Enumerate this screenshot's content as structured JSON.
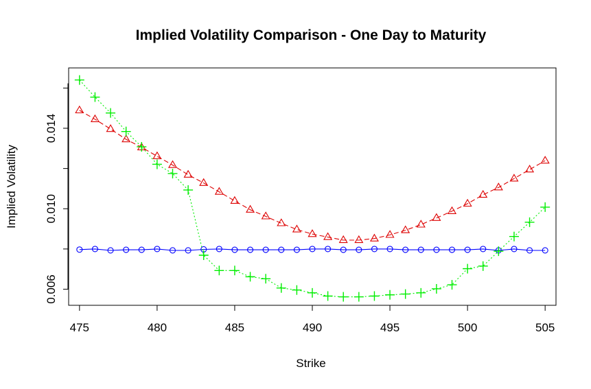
{
  "chart_data": {
    "type": "line",
    "title": "Implied Volatility Comparison - One Day to Maturity",
    "xlabel": "Strike",
    "ylabel": "Implied Volatility",
    "xlim": [
      474.3,
      505.7
    ],
    "ylim": [
      0.0052,
      0.017
    ],
    "x_ticks": [
      475,
      480,
      485,
      490,
      495,
      500,
      505
    ],
    "x_tick_labels": [
      "475",
      "480",
      "485",
      "490",
      "495",
      "500",
      "505"
    ],
    "y_ticks": [
      0.006,
      0.01,
      0.014
    ],
    "y_tick_labels": [
      "0.006",
      "0.010",
      "0.014"
    ],
    "x": [
      475,
      476,
      477,
      478,
      479,
      480,
      481,
      482,
      483,
      484,
      485,
      486,
      487,
      488,
      489,
      490,
      491,
      492,
      493,
      494,
      495,
      496,
      497,
      498,
      499,
      500,
      501,
      502,
      503,
      504,
      505
    ],
    "series": [
      {
        "name": "blue circles",
        "color": "#0000ff",
        "marker": "circle",
        "line_style": "solid",
        "values": [
          0.00797,
          0.008,
          0.00793,
          0.00796,
          0.00796,
          0.008,
          0.00793,
          0.00793,
          0.00798,
          0.008,
          0.00796,
          0.00796,
          0.00796,
          0.00796,
          0.00796,
          0.008,
          0.008,
          0.00796,
          0.00796,
          0.008,
          0.008,
          0.00796,
          0.00796,
          0.00796,
          0.00796,
          0.00796,
          0.008,
          0.00793,
          0.008,
          0.00793,
          0.00793
        ]
      },
      {
        "name": "red triangles",
        "color": "#dd0000",
        "marker": "triangle",
        "line_style": "dashed",
        "values": [
          0.01489,
          0.01445,
          0.01396,
          0.01345,
          0.01305,
          0.01261,
          0.01217,
          0.01169,
          0.01128,
          0.01084,
          0.01039,
          0.00995,
          0.00962,
          0.00928,
          0.00897,
          0.00874,
          0.00859,
          0.00844,
          0.00844,
          0.00852,
          0.0087,
          0.00893,
          0.00921,
          0.00954,
          0.00988,
          0.01025,
          0.01069,
          0.01106,
          0.0115,
          0.01195,
          0.01239
        ]
      },
      {
        "name": "green crosses",
        "color": "#00ee00",
        "marker": "plus",
        "line_style": "dotted",
        "values": [
          0.0164,
          0.01555,
          0.01476,
          0.01384,
          0.01308,
          0.01221,
          0.01175,
          0.01093,
          0.00769,
          0.00693,
          0.00693,
          0.00662,
          0.00652,
          0.00606,
          0.00596,
          0.00582,
          0.00566,
          0.00562,
          0.00562,
          0.00566,
          0.00572,
          0.00576,
          0.00582,
          0.00602,
          0.00622,
          0.00702,
          0.00715,
          0.00789,
          0.00862,
          0.00933,
          0.01008
        ]
      }
    ]
  }
}
